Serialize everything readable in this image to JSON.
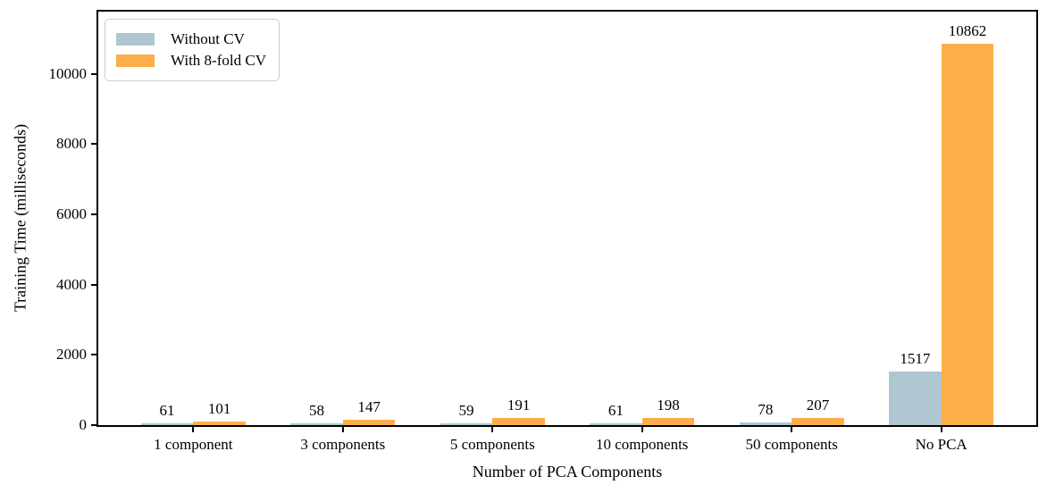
{
  "chart_data": {
    "type": "bar",
    "title": "",
    "xlabel": "Number of PCA Components",
    "ylabel": "Training Time (milliseconds)",
    "categories": [
      "1 component",
      "3 components",
      "5 components",
      "10 components",
      "50 components",
      "No PCA"
    ],
    "series": [
      {
        "name": "Without CV",
        "color": "#AEC6CF",
        "values": [
          61,
          58,
          59,
          61,
          78,
          1517
        ]
      },
      {
        "name": "With 8-fold CV",
        "color": "#FCAE4B",
        "values": [
          101,
          147,
          191,
          198,
          207,
          10862
        ]
      }
    ],
    "bar_value_labels": true,
    "ylim": [
      0,
      11770
    ],
    "yticks": [
      0,
      2000,
      4000,
      6000,
      8000,
      10000
    ],
    "xlim_pad": 0.635,
    "bar_width_fraction": 0.35,
    "legend_position": "upper left",
    "grid": false,
    "axis_color": "#000000",
    "background_color": "#ffffff"
  }
}
